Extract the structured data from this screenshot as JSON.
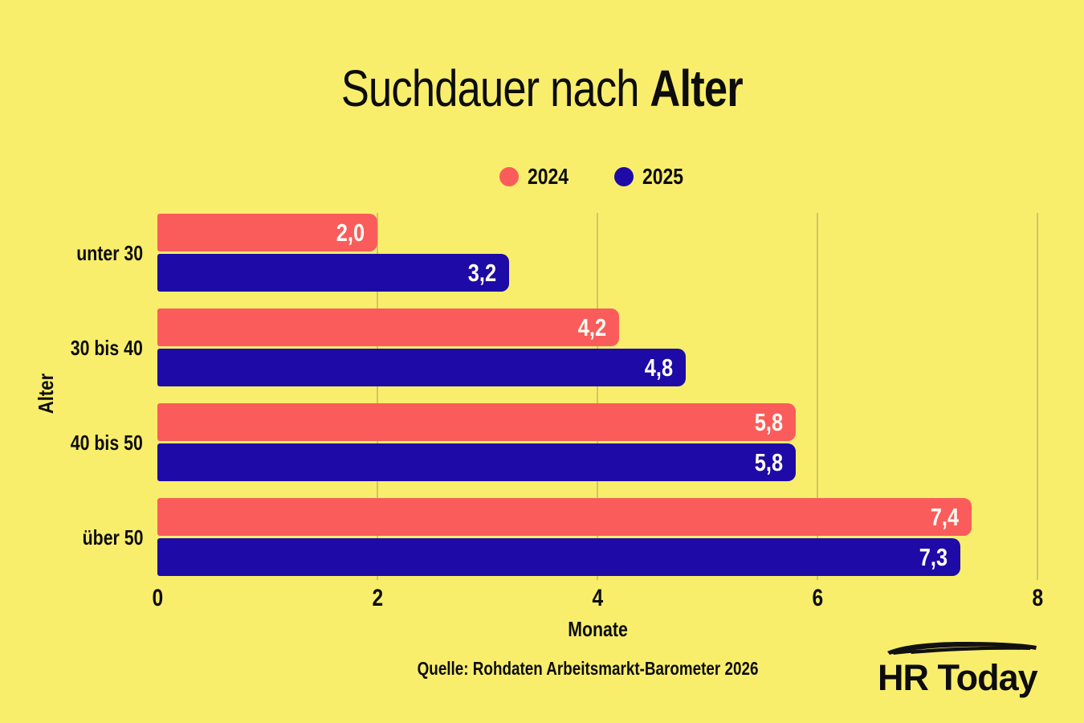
{
  "title": {
    "regular": "Suchdauer nach ",
    "bold": "Alter"
  },
  "legend": [
    {
      "label": "2024",
      "color": "#FA5C5C"
    },
    {
      "label": "2025",
      "color": "#1E0AA6"
    }
  ],
  "chart_data": {
    "type": "bar",
    "orientation": "horizontal",
    "title": "Suchdauer nach Alter",
    "categories": [
      "unter 30",
      "30 bis 40",
      "40 bis 50",
      "über 50"
    ],
    "series": [
      {
        "name": "2024",
        "color": "#FA5C5C",
        "values": [
          2.0,
          4.2,
          5.8,
          7.4
        ],
        "value_labels": [
          "2,0",
          "4,2",
          "5,8",
          "7,4"
        ]
      },
      {
        "name": "2025",
        "color": "#1E0AA6",
        "values": [
          3.2,
          4.8,
          5.8,
          7.3
        ],
        "value_labels": [
          "3,2",
          "4,8",
          "5,8",
          "7,3"
        ]
      }
    ],
    "xlabel": "Monate",
    "ylabel": "Alter",
    "xlim": [
      0,
      8
    ],
    "xtick_values": [
      0,
      2,
      4,
      6,
      8
    ],
    "xtick_labels": [
      "0",
      "2",
      "4",
      "6",
      "8"
    ],
    "grid": true,
    "legend_position": "top"
  },
  "source": "Quelle: Rohdaten Arbeitsmarkt-Barometer 2026",
  "logo": {
    "text": "HR Today"
  },
  "colors": {
    "background": "#F9EE6C",
    "bar_2024": "#FA5C5C",
    "bar_2025": "#1E0AA6",
    "gridline": "#CFC75F",
    "text": "#0D0D0D",
    "value_label": "#FFFDF4",
    "logo_ink": "#111111"
  }
}
